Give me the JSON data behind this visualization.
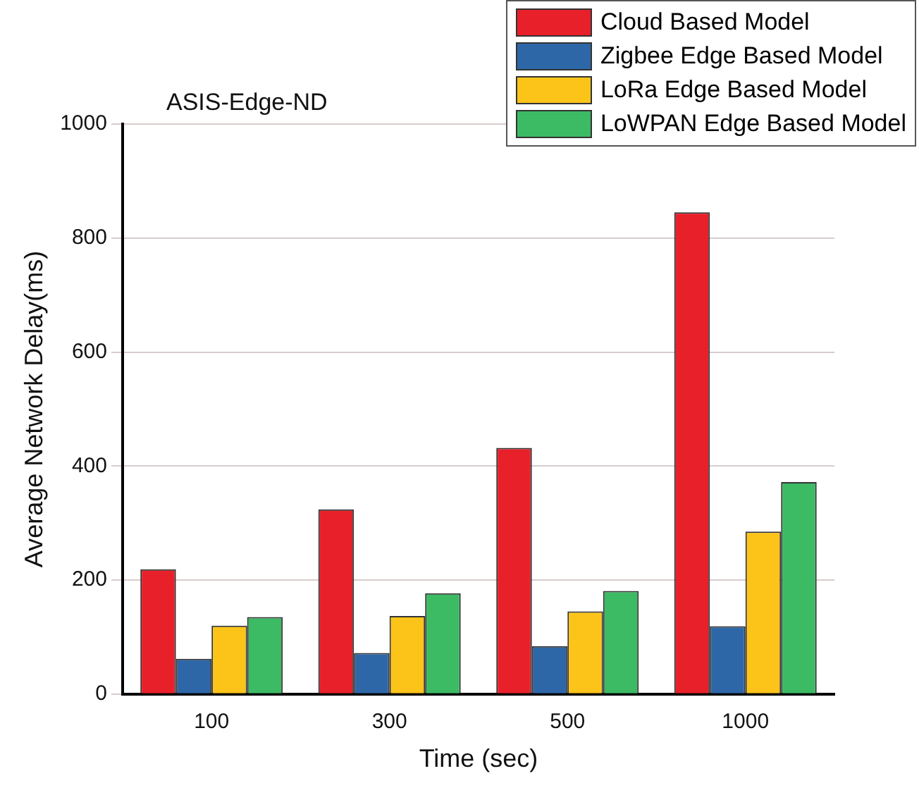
{
  "chart_data": {
    "type": "bar",
    "title": "ASIS-Edge-ND",
    "xlabel": "Time (sec)",
    "ylabel": "Average Network Delay(ms)",
    "categories": [
      "100",
      "300",
      "500",
      "1000"
    ],
    "series": [
      {
        "name": "Cloud Based Model",
        "color": "#e8202a",
        "values": [
          219,
          324,
          432,
          845
        ]
      },
      {
        "name": "Zigbee Edge Based Model",
        "color": "#2e67a8",
        "values": [
          62,
          72,
          84,
          119
        ]
      },
      {
        "name": "LoRa Edge Based Model",
        "color": "#fcc419",
        "values": [
          120,
          137,
          145,
          285
        ]
      },
      {
        "name": "LoWPAN Edge Based Model",
        "color": "#3dba64",
        "values": [
          135,
          177,
          181,
          372
        ]
      }
    ],
    "ylim": [
      0,
      1000
    ],
    "yticks": [
      0,
      200,
      400,
      600,
      800,
      1000
    ],
    "grid": "y",
    "legend": "top right"
  }
}
